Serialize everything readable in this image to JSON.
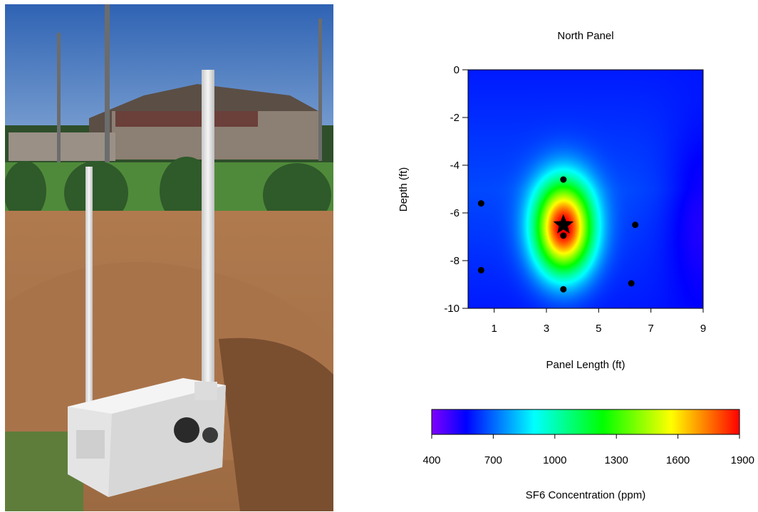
{
  "chart_data": [
    {
      "type": "heatmap",
      "title": "North Panel",
      "xlabel": "Panel Length (ft)",
      "ylabel": "Depth (ft)",
      "xlim": [
        0,
        9
      ],
      "ylim": [
        -10,
        0
      ],
      "xticks": [
        1,
        3,
        5,
        7,
        9
      ],
      "yticks": [
        0,
        -2,
        -4,
        -6,
        -8,
        -10
      ],
      "grid": false,
      "sample_points": [
        {
          "x": 0.5,
          "y": -5.6
        },
        {
          "x": 0.5,
          "y": -8.4
        },
        {
          "x": 3.65,
          "y": -4.6
        },
        {
          "x": 3.65,
          "y": -6.95
        },
        {
          "x": 3.65,
          "y": -9.2
        },
        {
          "x": 6.4,
          "y": -6.5
        },
        {
          "x": 6.25,
          "y": -8.95
        }
      ],
      "source_marker": {
        "x": 3.65,
        "y": -6.5,
        "shape": "star"
      },
      "field_peaks": [
        {
          "x": 3.65,
          "y": -6.6,
          "value": 1900,
          "spread_x": 1.1,
          "spread_y": 1.9
        }
      ],
      "field_background": 600
    },
    {
      "type": "colorbar",
      "label": "SF6 Concentration (ppm)",
      "range": [
        400,
        1900
      ],
      "ticks": [
        400,
        700,
        1000,
        1300,
        1600,
        1900
      ],
      "colormap": [
        "#8000ff",
        "#0000ff",
        "#0080ff",
        "#00ffff",
        "#00ff80",
        "#00ff00",
        "#80ff00",
        "#ffff00",
        "#ff8000",
        "#ff0000"
      ]
    }
  ],
  "photo": {
    "description_colors": {
      "sky": "#3a6fb8",
      "grass": "#4f8a3a",
      "soil": "#b8794a",
      "box": "#e6e6e6"
    }
  }
}
